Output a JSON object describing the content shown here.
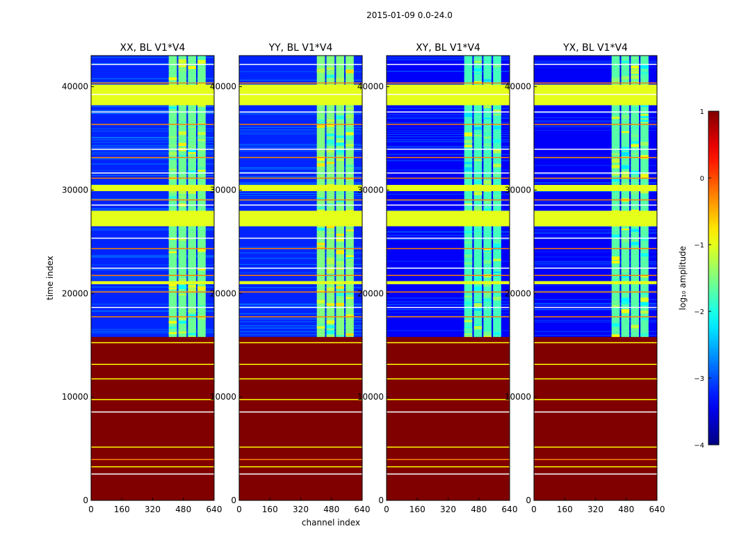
{
  "figure": {
    "suptitle": "2015-01-09 0.0-24.0"
  },
  "chart_data": {
    "type": "heatmap",
    "colormap": "jet",
    "xlabel": "channel index",
    "ylabel": "time index",
    "xlim": [
      0,
      640
    ],
    "ylim": [
      0,
      43000
    ],
    "xticks": [
      0,
      160,
      320,
      480,
      640
    ],
    "yticks": [
      0,
      10000,
      20000,
      30000,
      40000
    ],
    "panels": [
      {
        "title": "XX, BL V1*V4",
        "signal_channels": [
          400,
          600
        ],
        "signal_level": -1.6,
        "background_level": -3.2
      },
      {
        "title": "YY, BL V1*V4",
        "signal_channels": [
          400,
          600
        ],
        "signal_level": -1.5,
        "background_level": -3.2
      },
      {
        "title": "XY, BL V1*V4",
        "signal_channels": [
          400,
          600
        ],
        "signal_level": -1.8,
        "background_level": -3.4
      },
      {
        "title": "YX, BL V1*V4",
        "signal_channels": [
          400,
          600
        ],
        "signal_level": -1.7,
        "background_level": -3.4
      }
    ],
    "time_bands": [
      {
        "start": 0,
        "end": 15800,
        "level": 1.0,
        "description": "saturated rows"
      },
      {
        "start": 26500,
        "end": 28000,
        "level": -1.0,
        "description": "flat rows"
      },
      {
        "start": 29900,
        "end": 30500,
        "level": -1.0,
        "description": "flat rows"
      },
      {
        "start": 38200,
        "end": 40200,
        "level": -1.0,
        "description": "flat rows"
      },
      {
        "start": 20900,
        "end": 21200,
        "level": -1.0,
        "description": "flat rows"
      }
    ],
    "colorbar": {
      "label": "log₁₀ amplitude",
      "min": -4,
      "max": 1,
      "ticks": [
        "1",
        "0",
        "−1",
        "−2",
        "−3",
        "−4"
      ],
      "tick_values": [
        1,
        0,
        -1,
        -2,
        -3,
        -4
      ]
    }
  }
}
